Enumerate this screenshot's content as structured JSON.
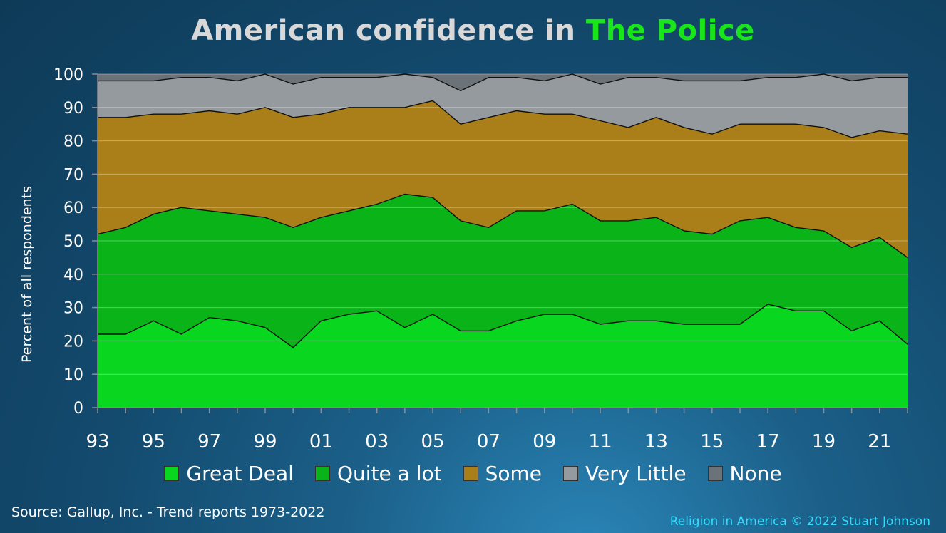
{
  "title": {
    "prefix": "American confidence in ",
    "highlight": "The Police"
  },
  "source": "Source: Gallup, Inc. - Trend reports 1973-2022",
  "credit": "Religion in America © 2022 Stuart Johnson",
  "colors": {
    "great_deal": "#08d61f",
    "quite_a_lot": "#0ab318",
    "some": "#aa7f1a",
    "very_little": "#949a9e",
    "none": "#6b7278",
    "title_highlight": "#19e619"
  },
  "chart_data": {
    "type": "area",
    "stacked": true,
    "ylabel": "Percent of all respondents",
    "ylim": [
      0,
      100
    ],
    "yticks": [
      0,
      10,
      20,
      30,
      40,
      50,
      60,
      70,
      80,
      90,
      100
    ],
    "x": [
      1993,
      1994,
      1995,
      1996,
      1997,
      1998,
      1999,
      2000,
      2001,
      2002,
      2003,
      2004,
      2005,
      2006,
      2007,
      2008,
      2009,
      2010,
      2011,
      2012,
      2013,
      2014,
      2015,
      2016,
      2017,
      2018,
      2019,
      2020,
      2021,
      2022
    ],
    "xtick_labels": [
      "93",
      "95",
      "97",
      "99",
      "01",
      "03",
      "05",
      "07",
      "09",
      "11",
      "13",
      "15",
      "17",
      "19",
      "21"
    ],
    "legend_position": "bottom",
    "grid": true,
    "series": [
      {
        "name": "Great Deal",
        "values": [
          22,
          22,
          26,
          22,
          27,
          26,
          24,
          18,
          26,
          28,
          29,
          24,
          28,
          23,
          23,
          26,
          28,
          28,
          25,
          26,
          26,
          25,
          25,
          25,
          31,
          29,
          29,
          23,
          26,
          19
        ]
      },
      {
        "name": "Quite a lot",
        "values": [
          30,
          32,
          32,
          38,
          32,
          32,
          33,
          36,
          31,
          31,
          32,
          40,
          35,
          33,
          31,
          33,
          31,
          33,
          31,
          30,
          31,
          28,
          27,
          31,
          26,
          25,
          24,
          25,
          25,
          26
        ]
      },
      {
        "name": "Some",
        "values": [
          35,
          33,
          30,
          28,
          30,
          30,
          33,
          33,
          31,
          31,
          29,
          26,
          29,
          29,
          33,
          30,
          29,
          27,
          30,
          28,
          30,
          31,
          30,
          29,
          28,
          31,
          31,
          33,
          32,
          37
        ]
      },
      {
        "name": "Very Little",
        "values": [
          11,
          11,
          10,
          11,
          10,
          10,
          10,
          10,
          11,
          9,
          9,
          10,
          7,
          10,
          12,
          10,
          10,
          12,
          11,
          15,
          12,
          14,
          16,
          13,
          14,
          14,
          16,
          17,
          16,
          17
        ]
      },
      {
        "name": "None",
        "values": [
          2,
          2,
          2,
          1,
          1,
          2,
          0,
          3,
          1,
          1,
          1,
          0,
          1,
          5,
          1,
          1,
          2,
          0,
          3,
          1,
          1,
          2,
          2,
          2,
          1,
          1,
          0,
          2,
          1,
          1
        ]
      }
    ]
  }
}
